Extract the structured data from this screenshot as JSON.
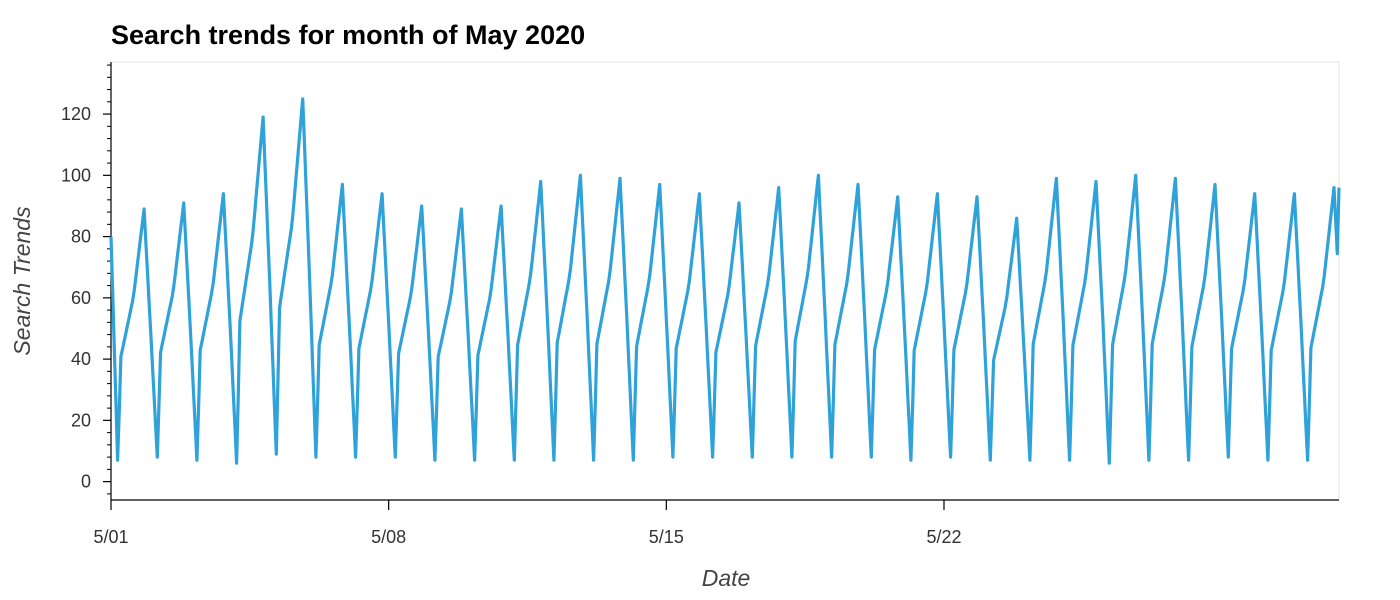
{
  "chart_data": {
    "type": "line",
    "title": "Search trends for month of May 2020",
    "xlabel": "Date",
    "ylabel": "Search Trends",
    "x_start": "2020-05-01T00:00",
    "x_interval": "1 hour",
    "x_ticks": [
      {
        "date": "2020-05-01",
        "label": "5/01"
      },
      {
        "date": "2020-05-08",
        "label": "5/08"
      },
      {
        "date": "2020-05-15",
        "label": "5/15"
      },
      {
        "date": "2020-05-22",
        "label": "5/22"
      }
    ],
    "xlim": [
      "2020-05-01T00:00",
      "2020-05-31T23:00"
    ],
    "y_ticks": [
      0,
      20,
      40,
      60,
      80,
      100,
      120
    ],
    "ylim": [
      -6,
      137
    ],
    "grid": false,
    "series": [
      {
        "color": "#30a2da",
        "daily_peaks": [
          89,
          91,
          94,
          119,
          125,
          97,
          94,
          90,
          89,
          90,
          98,
          100,
          99,
          97,
          94,
          91,
          96,
          100,
          97,
          93,
          94,
          93,
          86,
          99,
          98,
          100,
          99,
          97,
          94,
          94,
          96
        ],
        "daily_troughs": [
          7,
          8,
          7,
          6,
          9,
          8,
          8,
          8,
          7,
          7,
          7,
          7,
          7,
          7,
          8,
          8,
          8,
          8,
          8,
          8,
          7,
          8,
          7,
          7,
          7,
          6,
          7,
          7,
          8,
          7,
          7
        ],
        "start_value": 80,
        "end_value": 96
      }
    ]
  }
}
